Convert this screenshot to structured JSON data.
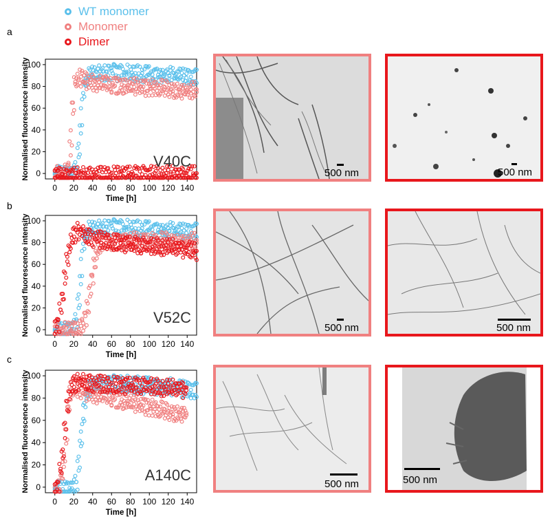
{
  "colors": {
    "wt_monomer": "#5bc0eb",
    "monomer": "#f08080",
    "dimer": "#e8171c"
  },
  "legend": [
    {
      "name": "WT monomer",
      "color": "#5bc0eb"
    },
    {
      "name": "Monomer",
      "color": "#f08080"
    },
    {
      "name": "Dimer",
      "color": "#e8171c"
    }
  ],
  "chart_data": [
    {
      "type": "scatter",
      "panel": "a",
      "annotation": "V40C",
      "xlabel": "Time [h]",
      "ylabel": "Normalised fluorescence intensity",
      "xlim": [
        -10,
        150
      ],
      "ylim": [
        -5,
        105
      ],
      "xticks": [
        "0",
        "20",
        "40",
        "60",
        "80",
        "100",
        "120",
        "140"
      ],
      "yticks": [
        "0",
        "20",
        "40",
        "60",
        "80",
        "100"
      ],
      "series": [
        {
          "name": "WT monomer",
          "x": [
            0,
            10,
            20,
            25,
            28,
            30,
            32,
            35,
            40,
            50,
            60,
            80,
            100,
            120,
            140,
            150
          ],
          "y": [
            3,
            3,
            4,
            10,
            40,
            70,
            85,
            92,
            96,
            97,
            97,
            96,
            95,
            94,
            93,
            92
          ]
        },
        {
          "name": "Monomer",
          "x": [
            0,
            10,
            15,
            18,
            20,
            22,
            25,
            30,
            40,
            60,
            80,
            100,
            120,
            140,
            150
          ],
          "y": [
            3,
            3,
            5,
            30,
            65,
            85,
            92,
            90,
            88,
            85,
            84,
            83,
            82,
            80,
            80
          ]
        },
        {
          "name": "Dimer",
          "x": [
            0,
            20,
            40,
            60,
            80,
            100,
            120,
            140,
            150
          ],
          "y": [
            2,
            2,
            2,
            3,
            3,
            3,
            3,
            3,
            3
          ]
        }
      ]
    },
    {
      "type": "scatter",
      "panel": "b",
      "annotation": "V52C",
      "xlabel": "Time [h]",
      "ylabel": "Normalised fluorescence intensity",
      "xlim": [
        -10,
        150
      ],
      "ylim": [
        -5,
        105
      ],
      "xticks": [
        "0",
        "20",
        "40",
        "60",
        "80",
        "100",
        "120",
        "140"
      ],
      "yticks": [
        "0",
        "20",
        "40",
        "60",
        "80",
        "100"
      ],
      "series": [
        {
          "name": "WT monomer",
          "x": [
            0,
            10,
            20,
            25,
            28,
            30,
            32,
            35,
            40,
            50,
            60,
            80,
            100,
            120,
            140,
            150
          ],
          "y": [
            3,
            3,
            5,
            15,
            45,
            75,
            88,
            95,
            97,
            98,
            98,
            97,
            96,
            95,
            94,
            94
          ]
        },
        {
          "name": "Monomer",
          "x": [
            0,
            20,
            30,
            35,
            40,
            45,
            50,
            60,
            80,
            100,
            120,
            140,
            150
          ],
          "y": [
            3,
            3,
            5,
            20,
            50,
            75,
            82,
            84,
            86,
            85,
            86,
            85,
            85
          ]
        },
        {
          "name": "Dimer",
          "x": [
            0,
            5,
            10,
            15,
            20,
            25,
            30,
            40,
            60,
            80,
            100,
            120,
            140,
            150
          ],
          "y": [
            5,
            10,
            40,
            75,
            90,
            95,
            92,
            88,
            85,
            82,
            80,
            80,
            78,
            75
          ]
        }
      ]
    },
    {
      "type": "scatter",
      "panel": "c",
      "annotation": "A140C",
      "xlabel": "Time [h]",
      "ylabel": "Normalised fluorescence intensity",
      "xlim": [
        -10,
        150
      ],
      "ylim": [
        -5,
        105
      ],
      "xticks": [
        "0",
        "20",
        "40",
        "60",
        "80",
        "100",
        "120",
        "140"
      ],
      "yticks": [
        "0",
        "20",
        "40",
        "60",
        "80",
        "100"
      ],
      "series": [
        {
          "name": "WT monomer",
          "x": [
            0,
            10,
            20,
            25,
            28,
            32,
            35,
            40,
            50,
            60,
            80,
            100,
            120,
            140,
            150
          ],
          "y": [
            2,
            2,
            3,
            10,
            40,
            75,
            90,
            96,
            97,
            97,
            96,
            95,
            94,
            92,
            90
          ]
        },
        {
          "name": "Monomer",
          "x": [
            0,
            5,
            10,
            15,
            18,
            20,
            25,
            30,
            40,
            60,
            80,
            100,
            120,
            140
          ],
          "y": [
            0,
            2,
            20,
            70,
            90,
            95,
            92,
            90,
            88,
            84,
            80,
            76,
            72,
            70
          ]
        },
        {
          "name": "Dimer",
          "x": [
            0,
            5,
            10,
            15,
            20,
            25,
            30,
            40,
            60,
            80,
            100,
            120,
            140
          ],
          "y": [
            0,
            5,
            40,
            85,
            96,
            98,
            98,
            97,
            96,
            95,
            94,
            93,
            92
          ]
        }
      ]
    }
  ],
  "panels": [
    {
      "letter": "a",
      "em": [
        {
          "color": "#f08080",
          "scale": "500 nm"
        },
        {
          "color": "#e8171c",
          "scale": "500 nm"
        }
      ]
    },
    {
      "letter": "b",
      "em": [
        {
          "color": "#f08080",
          "scale": "500 nm"
        },
        {
          "color": "#e8171c",
          "scale": "500 nm"
        }
      ]
    },
    {
      "letter": "c",
      "em": [
        {
          "color": "#f08080",
          "scale": "500 nm"
        },
        {
          "color": "#e8171c",
          "scale": "500 nm"
        }
      ]
    }
  ]
}
